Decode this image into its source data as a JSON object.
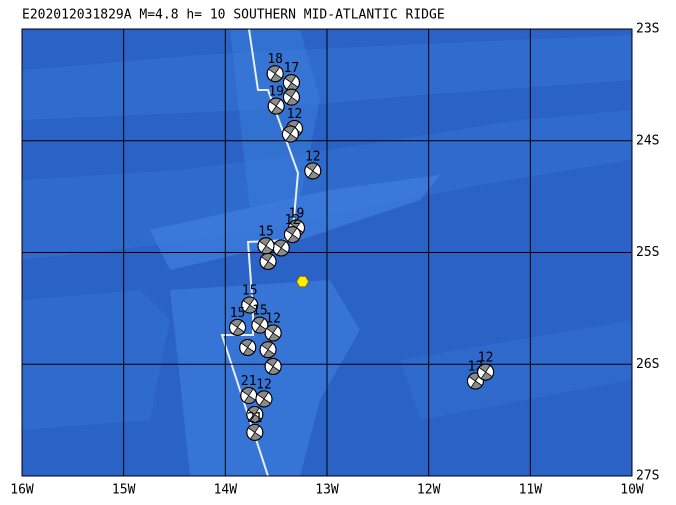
{
  "map": {
    "title": "E202012031829A M=4.8 h= 10 SOUTHERN MID-ATLANTIC RIDGE",
    "lonlim": [
      -16,
      -10
    ],
    "latlim": [
      -27,
      -23
    ],
    "lonticks": [
      {
        "value": -16,
        "label": "16W"
      },
      {
        "value": -15,
        "label": "15W"
      },
      {
        "value": -14,
        "label": "14W"
      },
      {
        "value": -13,
        "label": "13W"
      },
      {
        "value": -12,
        "label": "12W"
      },
      {
        "value": -11,
        "label": "11W"
      },
      {
        "value": -10,
        "label": "10W"
      }
    ],
    "latticks": [
      {
        "value": -23,
        "label": "23S"
      },
      {
        "value": -24,
        "label": "24S"
      },
      {
        "value": -25,
        "label": "25S"
      },
      {
        "value": -26,
        "label": "26S"
      },
      {
        "value": -27,
        "label": "27S"
      }
    ],
    "epicenter": {
      "lon": -13.24,
      "lat": -25.26
    },
    "events": [
      {
        "lon": -13.51,
        "lat": -23.4,
        "label": "18"
      },
      {
        "lon": -13.35,
        "lat": -23.48,
        "label": "17"
      },
      {
        "lon": -13.35,
        "lat": -23.61,
        "label": null
      },
      {
        "lon": -13.5,
        "lat": -23.69,
        "label": "19"
      },
      {
        "lon": -13.32,
        "lat": -23.89,
        "label": "12"
      },
      {
        "lon": -13.36,
        "lat": -23.94,
        "label": null
      },
      {
        "lon": -13.14,
        "lat": -24.27,
        "label": "12"
      },
      {
        "lon": -13.3,
        "lat": -24.78,
        "label": "19"
      },
      {
        "lon": -13.34,
        "lat": -24.84,
        "label": "12"
      },
      {
        "lon": -13.45,
        "lat": -24.96,
        "label": null
      },
      {
        "lon": -13.6,
        "lat": -24.94,
        "label": "15"
      },
      {
        "lon": -13.58,
        "lat": -25.08,
        "label": null
      },
      {
        "lon": -13.76,
        "lat": -25.47,
        "label": "15"
      },
      {
        "lon": -13.88,
        "lat": -25.67,
        "label": "15"
      },
      {
        "lon": -13.66,
        "lat": -25.65,
        "label": "15"
      },
      {
        "lon": -13.53,
        "lat": -25.72,
        "label": "12"
      },
      {
        "lon": -13.78,
        "lat": -25.85,
        "label": null
      },
      {
        "lon": -13.58,
        "lat": -25.87,
        "label": null
      },
      {
        "lon": -13.53,
        "lat": -26.02,
        "label": null
      },
      {
        "lon": -13.77,
        "lat": -26.28,
        "label": "21"
      },
      {
        "lon": -13.62,
        "lat": -26.31,
        "label": "12"
      },
      {
        "lon": -13.71,
        "lat": -26.45,
        "label": null
      },
      {
        "lon": -13.71,
        "lat": -26.61,
        "label": "21"
      },
      {
        "lon": -11.54,
        "lat": -26.15,
        "label": "12"
      },
      {
        "lon": -11.44,
        "lat": -26.07,
        "label": "12"
      }
    ]
  }
}
